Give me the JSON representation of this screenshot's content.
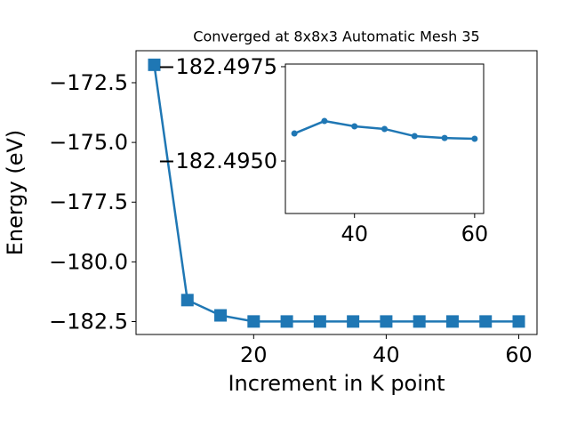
{
  "chart_data": [
    {
      "type": "line",
      "title": "Converged at 8x8x3 Automatic Mesh 35",
      "x_label": "Increment in K point",
      "y_label": "Energy (eV)",
      "x": [
        5,
        10,
        15,
        20,
        25,
        30,
        35,
        40,
        45,
        50,
        55,
        60
      ],
      "series": [
        {
          "color": "#1f77b4",
          "marker": "square",
          "values": [
            -171.75,
            -181.6,
            -182.24,
            -182.495,
            -182.496,
            -182.4957,
            -182.4961,
            -182.4959,
            -182.4958,
            -182.4957,
            -182.4956,
            -182.4956
          ]
        }
      ],
      "xlim": [
        2.25,
        62.75
      ],
      "xticks": [
        20,
        40,
        60
      ],
      "ylim": [
        -183.04,
        -171.16
      ],
      "yticks": [
        {
          "value": -182.5,
          "label": "−182.5"
        },
        {
          "value": -180,
          "label": "−180.0"
        },
        {
          "value": -177.5,
          "label": "−177.5"
        },
        {
          "value": -175,
          "label": "−175.0"
        },
        {
          "value": -172.5,
          "label": "−172.5"
        }
      ]
    },
    {
      "type": "line",
      "x": [
        30,
        35,
        40,
        45,
        50,
        55,
        60
      ],
      "series": [
        {
          "color": "#1f77b4",
          "marker": "circle",
          "values": [
            -182.49573,
            -182.49606,
            -182.49592,
            -182.49585,
            -182.49566,
            -182.49561,
            -182.49559
          ]
        }
      ],
      "xlim": [
        28.5,
        61.5
      ],
      "xticks": [
        40,
        60
      ],
      "ylim": [
        -182.49361,
        -182.49757
      ],
      "yticks": [
        {
          "value": -182.4975,
          "label": "−182.4975"
        },
        {
          "value": -182.495,
          "label": "−182.4950"
        }
      ]
    }
  ]
}
